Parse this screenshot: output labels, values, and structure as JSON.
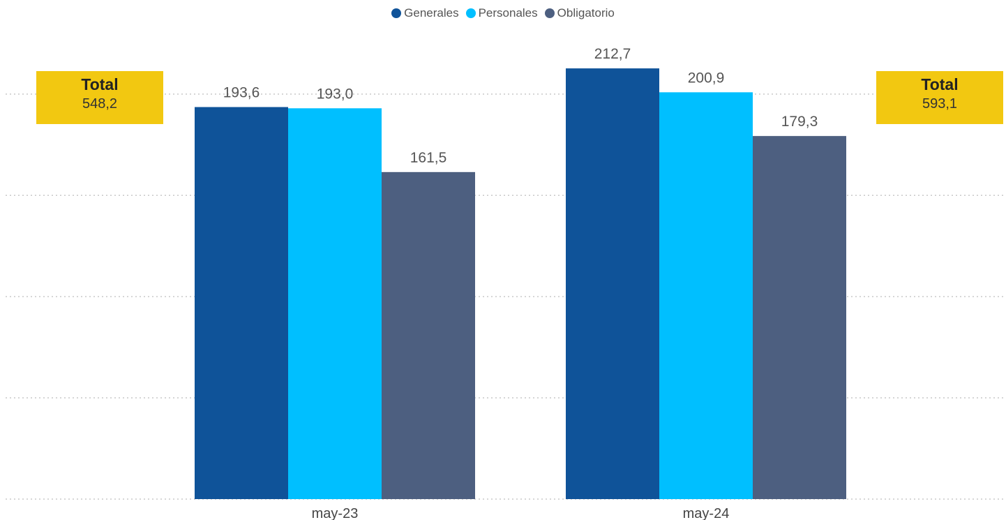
{
  "legend": {
    "items": [
      {
        "label": "Generales",
        "color": "#0f5399"
      },
      {
        "label": "Personales",
        "color": "#00bfff"
      },
      {
        "label": "Obligatorio",
        "color": "#4d5f80"
      }
    ]
  },
  "totals": [
    {
      "title": "Total",
      "value": "548,2"
    },
    {
      "title": "Total",
      "value": "593,1"
    }
  ],
  "chart_data": {
    "type": "bar",
    "title": "",
    "xlabel": "",
    "ylabel": "",
    "categories": [
      "may-23",
      "may-24"
    ],
    "series": [
      {
        "name": "Generales",
        "color": "#0f5399",
        "values": [
          193.6,
          212.7
        ],
        "labels": [
          "193,6",
          "212,7"
        ]
      },
      {
        "name": "Personales",
        "color": "#00bfff",
        "values": [
          193.0,
          200.9
        ],
        "labels": [
          "193,0",
          "200,9"
        ]
      },
      {
        "name": "Obligatorio",
        "color": "#4d5f80",
        "values": [
          161.5,
          179.3
        ],
        "labels": [
          "161,5",
          "179,3"
        ]
      }
    ],
    "ylim": [
      0,
      200
    ],
    "y_gridlines": [
      0,
      50,
      100,
      150,
      200
    ],
    "grid": true,
    "grid_style": "dotted",
    "legend_position": "top-center"
  }
}
